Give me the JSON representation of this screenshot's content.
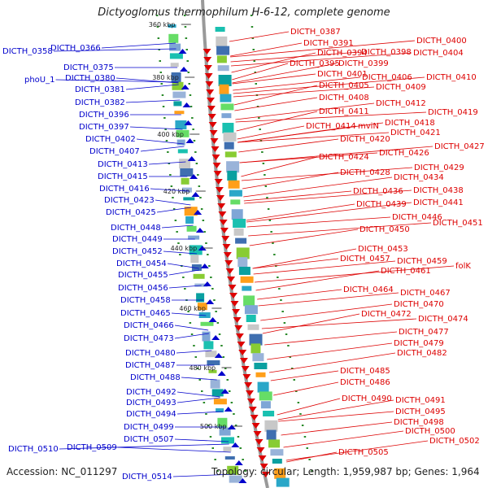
{
  "title": "Dictyoglomus thermophilum H-6-12, complete genome",
  "accession": "Accession: NC_011297",
  "topology": "Topology: circular; Length: 1,959,987 bp; Genes: 1,964",
  "colors": {
    "forward": "#0000cc",
    "reverse": "#dd0000",
    "backbone": "#999999",
    "gc": "#2a8a2a"
  },
  "scale_ticks": [
    "360 kbp",
    "380 kbp",
    "400 kbp",
    "420 kbp",
    "440 kbp",
    "460 kbp",
    "480 kbp",
    "500 kbp"
  ],
  "left_labels": [
    "DICTH_0366",
    "DICTH_0358",
    "DICTH_0375",
    "phoU_1",
    "DICTH_0380",
    "DICTH_0381",
    "DICTH_0382",
    "DICTH_0396",
    "DICTH_0397",
    "DICTH_0402",
    "DICTH_0407",
    "DICTH_0413",
    "DICTH_0415",
    "DICTH_0416",
    "DICTH_0423",
    "DICTH_0425",
    "DICTH_0448",
    "DICTH_0449",
    "DICTH_0452",
    "DICTH_0454",
    "DICTH_0455",
    "DICTH_0456",
    "DICTH_0458",
    "DICTH_0465",
    "DICTH_0466",
    "DICTH_0473",
    "DICTH_0480",
    "DICTH_0487",
    "DICTH_0488",
    "DICTH_0492",
    "DICTH_0493",
    "DICTH_0494",
    "DICTH_0499",
    "DICTH_0507",
    "DICTH_0509",
    "DICTH_0510",
    "DICTH_0514"
  ],
  "right_labels": [
    "DICTH_0387",
    "DICTH_0391",
    "DICTH_0400",
    "DICTH_0394",
    "DICTH_0398",
    "DICTH_0404",
    "DICTH_0395",
    "DICTH_0399",
    "DICTH_0401",
    "DICTH_0406",
    "DICTH_0410",
    "DICTH_0405",
    "DICTH_0409",
    "DICTH_0408",
    "DICTH_0412",
    "DICTH_0411",
    "DICTH_0419",
    "DICTH_0414",
    "mviN",
    "DICTH_0418",
    "DICTH_0421",
    "DICTH_0420",
    "DICTH_0427",
    "DICTH_0424",
    "DICTH_0426",
    "DICTH_0429",
    "DICTH_0428",
    "DICTH_0434",
    "DICTH_0436",
    "DICTH_0438",
    "DICTH_0439",
    "DICTH_0441",
    "DICTH_0446",
    "DICTH_0451",
    "DICTH_0450",
    "DICTH_0453",
    "DICTH_0457",
    "DICTH_0459",
    "folK",
    "DICTH_0461",
    "DICTH_0464",
    "DICTH_0467",
    "DICTH_0470",
    "DICTH_0472",
    "DICTH_0474",
    "DICTH_0477",
    "DICTH_0479",
    "DICTH_0482",
    "DICTH_0485",
    "DICTH_0486",
    "DICTH_0490",
    "DICTH_0491",
    "DICTH_0495",
    "DICTH_0498",
    "DICTH_0500",
    "DICTH_0502",
    "DICTH_0505"
  ]
}
